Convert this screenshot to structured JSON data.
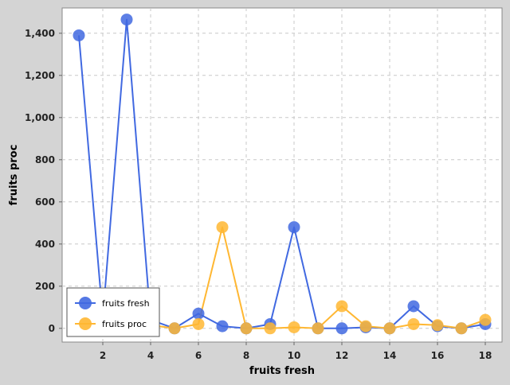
{
  "chart_data": {
    "type": "line",
    "title": "",
    "xlabel": "fruits fresh",
    "ylabel": "fruits proc",
    "xlim": [
      0.3,
      18.7
    ],
    "ylim": [
      -65,
      1520
    ],
    "x_ticks": [
      2,
      4,
      6,
      8,
      10,
      12,
      14,
      16,
      18
    ],
    "y_ticks": [
      0,
      200,
      400,
      600,
      800,
      1000,
      1200,
      1400
    ],
    "y_tick_labels": [
      "0",
      "200",
      "400",
      "600",
      "800",
      "1,000",
      "1,200",
      "1,400"
    ],
    "grid": true,
    "legend_position": "bottom-left",
    "x": [
      1,
      2,
      3,
      4,
      5,
      6,
      7,
      8,
      9,
      10,
      11,
      12,
      13,
      14,
      15,
      16,
      17,
      18
    ],
    "series": [
      {
        "name": "fruits fresh",
        "color": "#4169e1",
        "values": [
          1390,
          50,
          1465,
          40,
          0,
          70,
          10,
          0,
          20,
          480,
          0,
          0,
          5,
          0,
          105,
          10,
          0,
          20
        ]
      },
      {
        "name": "fruits proc",
        "color": "#ffb732",
        "values": [
          25,
          20,
          15,
          15,
          0,
          20,
          480,
          0,
          0,
          5,
          0,
          105,
          10,
          0,
          20,
          15,
          0,
          40
        ]
      }
    ]
  }
}
